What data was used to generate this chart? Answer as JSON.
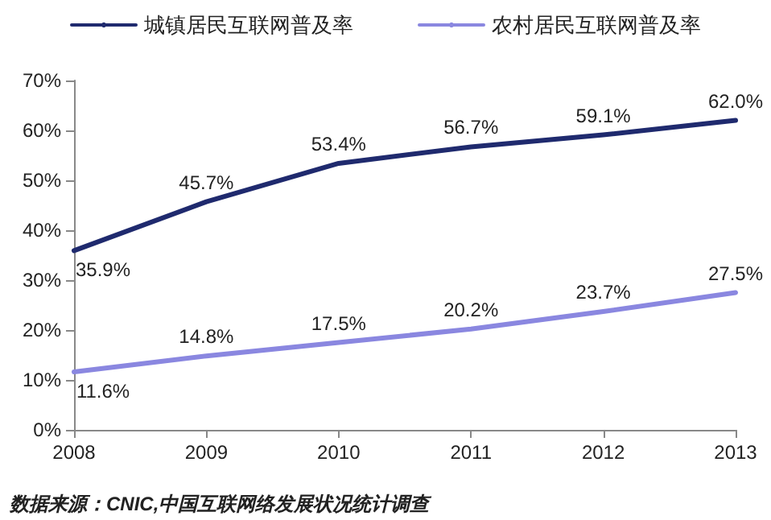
{
  "chart_data": {
    "type": "line",
    "x": [
      2008,
      2009,
      2010,
      2011,
      2012,
      2013
    ],
    "series": [
      {
        "name": "城镇居民互联网普及率",
        "color": "#1f2a6e",
        "values": [
          35.9,
          45.7,
          53.4,
          56.7,
          59.1,
          62.0
        ],
        "value_labels": [
          "35.9%",
          "45.7%",
          "53.4%",
          "56.7%",
          "59.1%",
          "62.0%"
        ]
      },
      {
        "name": "农村居民互联网普及率",
        "color": "#8a87e0",
        "values": [
          11.6,
          14.8,
          17.5,
          20.2,
          23.7,
          27.5
        ],
        "value_labels": [
          "11.6%",
          "14.8%",
          "17.5%",
          "20.2%",
          "23.7%",
          "27.5%"
        ]
      }
    ],
    "xlim": [
      2008,
      2013
    ],
    "xticks": [
      2008,
      2009,
      2010,
      2011,
      2012,
      2013
    ],
    "ylim": [
      0,
      70
    ],
    "yticks": [
      {
        "value": 0,
        "label": "0%"
      },
      {
        "value": 10,
        "label": "10%"
      },
      {
        "value": 20,
        "label": "20%"
      },
      {
        "value": 30,
        "label": "30%"
      },
      {
        "value": 40,
        "label": "40%"
      },
      {
        "value": 50,
        "label": "50%"
      },
      {
        "value": 60,
        "label": "60%"
      },
      {
        "value": 70,
        "label": "70%"
      }
    ],
    "grid": false,
    "legend": "top",
    "marker": "none",
    "line_style": "solid",
    "annotations": [
      "数据来源：CNIC,中国互联网络发展状况统计调查"
    ]
  }
}
